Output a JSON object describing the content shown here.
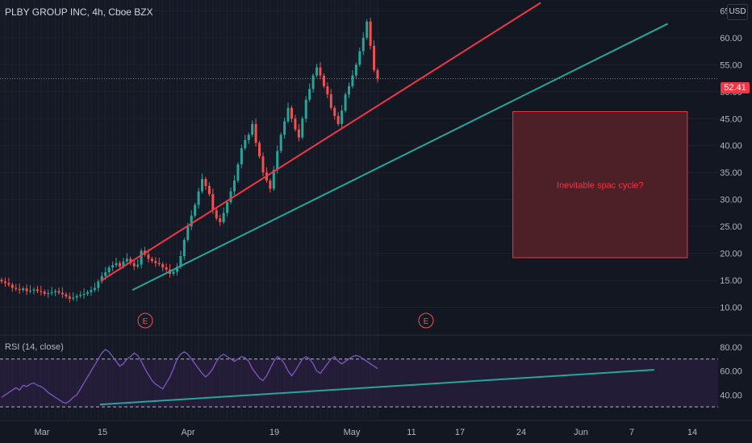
{
  "header": {
    "title": "PLBY GROUP INC, 4h, Cboe BZX",
    "currency": "USD"
  },
  "price_axis": {
    "ticks": [
      "65.00",
      "60.00",
      "55.00",
      "50.00",
      "45.00",
      "40.00",
      "35.00",
      "30.00",
      "25.00",
      "20.00",
      "15.00",
      "10.00"
    ],
    "last_price": "52.41"
  },
  "rsi_axis": {
    "ticks": [
      "80.00",
      "60.00",
      "40.00"
    ],
    "title": "RSI (14, close)"
  },
  "time_axis": {
    "ticks": [
      "Mar",
      "15",
      "Apr",
      "19",
      "May",
      "11",
      "17",
      "24",
      "Jun",
      "7",
      "14"
    ]
  },
  "annotation": {
    "text": "Inevitable spac cycle?"
  },
  "earnings_markers": [
    "E",
    "E"
  ],
  "colors": {
    "up": "#26a69a",
    "down": "#ef5350",
    "channel_upper": "#f23645",
    "channel_lower": "#26a69a",
    "rsi_line": "#7e57c2",
    "zone": "#4d1f26",
    "zone_border": "#f23645",
    "annotation_text": "#f23645"
  },
  "chart_data": {
    "type": "candlestick",
    "title": "PLBY GROUP INC, 4h, Cboe BZX",
    "y_range": [
      5,
      67
    ],
    "rsi_range": [
      20,
      90
    ],
    "last_price": 52.41,
    "closes": [
      14.8,
      14.5,
      14.2,
      13.6,
      13.4,
      13.2,
      13.5,
      13.0,
      13.1,
      13.3,
      13.0,
      12.9,
      12.5,
      12.6,
      12.8,
      13.0,
      12.7,
      12.4,
      12.0,
      11.6,
      11.8,
      12.1,
      12.3,
      12.5,
      12.8,
      13.2,
      13.6,
      14.8,
      15.8,
      16.5,
      17.4,
      17.8,
      18.2,
      17.6,
      18.5,
      19.0,
      18.2,
      17.6,
      17.9,
      20.5,
      19.8,
      19.0,
      18.6,
      18.2,
      18.0,
      17.4,
      17.0,
      16.2,
      16.6,
      17.5,
      19.5,
      22.5,
      25.0,
      27.0,
      29.0,
      31.5,
      33.8,
      32.5,
      31.0,
      28.0,
      26.5,
      25.8,
      27.5,
      29.5,
      31.5,
      33.5,
      36.5,
      39.5,
      41.0,
      42.0,
      44.0,
      40.5,
      38.0,
      35.0,
      33.5,
      32.0,
      35.5,
      39.0,
      42.0,
      44.5,
      47.0,
      45.0,
      43.0,
      41.5,
      45.0,
      48.5,
      50.5,
      53.0,
      54.5,
      53.0,
      51.0,
      49.5,
      47.0,
      45.5,
      44.0,
      46.5,
      49.5,
      51.0,
      53.0,
      55.0,
      57.5,
      60.0,
      63.0,
      58.5,
      54.0,
      52.41
    ],
    "rsi": [
      38,
      40,
      42,
      44,
      46,
      44,
      48,
      47,
      49,
      50,
      48,
      47,
      45,
      42,
      40,
      38,
      36,
      34,
      33,
      35,
      38,
      40,
      45,
      50,
      55,
      60,
      65,
      70,
      75,
      78,
      76,
      72,
      68,
      64,
      66,
      70,
      72,
      75,
      73,
      68,
      62,
      57,
      52,
      49,
      47,
      45,
      50,
      55,
      62,
      70,
      74,
      76,
      74,
      70,
      66,
      62,
      58,
      55,
      58,
      62,
      68,
      72,
      74,
      72,
      70,
      68,
      70,
      72,
      71,
      68,
      62,
      58,
      54,
      52,
      56,
      62,
      68,
      72,
      70,
      66,
      60,
      56,
      60,
      65,
      70,
      72,
      70,
      66,
      60,
      58,
      62,
      66,
      70,
      72,
      68,
      66,
      68,
      70,
      72,
      73,
      72,
      70,
      68,
      66,
      64,
      62
    ],
    "channel": {
      "upper": [
        [
          13.4,
          14.9
        ],
        [
          71.9,
          66.5
        ]
      ],
      "lower": [
        [
          17.6,
          13.2
        ],
        [
          88.8,
          62.6
        ]
      ]
    },
    "zone": {
      "x": [
        68.2,
        91.4
      ],
      "y": [
        19.2,
        46.3
      ],
      "label": "Inevitable spac cycle?"
    },
    "rsi_trend": [
      [
        13.3,
        32.0
      ],
      [
        87.0,
        61.0
      ]
    ],
    "rsi_bands": [
      70,
      30
    ]
  }
}
